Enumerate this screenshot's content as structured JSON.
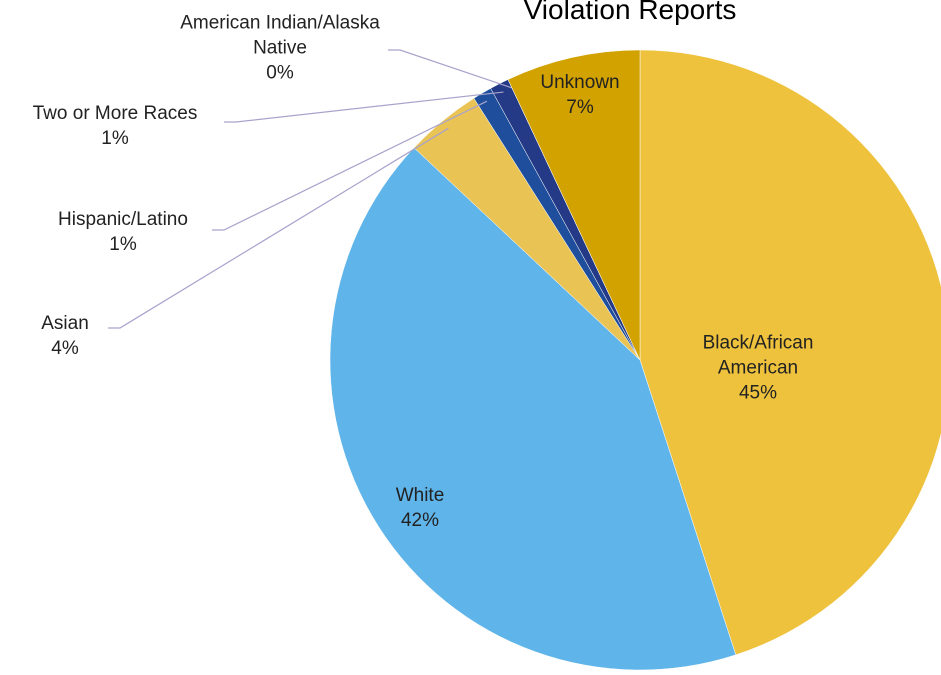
{
  "chart_data": {
    "type": "pie",
    "title": "Violation Reports",
    "categories": [
      "Black/African American",
      "White",
      "Asian",
      "Hispanic/Latino",
      "Two or More Races",
      "American Indian/Alaska Native",
      "Unknown"
    ],
    "values": [
      45,
      42,
      4,
      1,
      1,
      0,
      7
    ],
    "value_labels": [
      "45%",
      "42%",
      "4%",
      "1%",
      "1%",
      "0%",
      "7%"
    ],
    "colors": [
      "#eec23c",
      "#5fb4ea",
      "#e9c354",
      "#1f4f9c",
      "#243a86",
      "#4d3384",
      "#d2a200"
    ]
  }
}
